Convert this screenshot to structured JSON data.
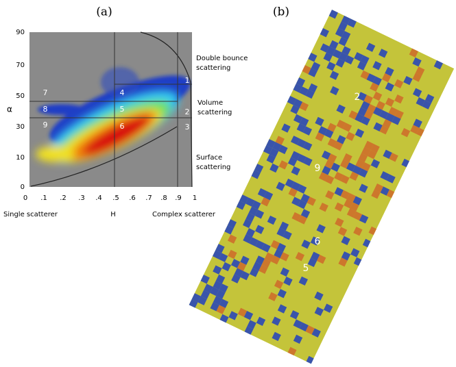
{
  "panel_a": {
    "label": "(a)",
    "y_axis_label": "α",
    "x_axis_label": "H",
    "left_caption": "Single scatterer",
    "right_caption": "Complex scatterer",
    "y_ticks": [
      "90",
      "70",
      "50",
      "30",
      "10",
      "0"
    ],
    "x_ticks": [
      "0",
      ".1",
      ".2",
      ".3",
      ".4",
      ".5",
      ".6",
      ".7",
      ".8",
      ".9",
      "1"
    ],
    "annotations": [
      [
        "Double bounce",
        "scattering"
      ],
      [
        "Volume",
        "scattering"
      ],
      [
        "Surface",
        "scattering"
      ]
    ],
    "zones": [
      "7",
      "8",
      "9",
      "4",
      "5",
      "6",
      "1",
      "2",
      "3"
    ]
  },
  "panel_b": {
    "label": "(b)",
    "zone_labels": [
      "2",
      "9",
      "6",
      "5"
    ]
  }
}
